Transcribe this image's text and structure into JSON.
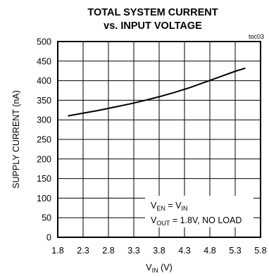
{
  "chart_data": {
    "type": "line",
    "title_line1": "TOTAL SYSTEM CURRENT",
    "title_line2": "vs. INPUT VOLTAGE",
    "figure_code": "toc03",
    "xlabel": {
      "main": "V",
      "sub": "IN",
      "unit": " (V)"
    },
    "ylabel": "SUPPLY CURRENT (nA)",
    "xlim": [
      1.8,
      5.8
    ],
    "ylim": [
      0,
      500
    ],
    "x_ticks": [
      "1.8",
      "2.3",
      "2.8",
      "3.3",
      "3.8",
      "4.3",
      "4.8",
      "5.3",
      "5.8"
    ],
    "y_ticks": [
      "0",
      "50",
      "100",
      "150",
      "200",
      "250",
      "300",
      "350",
      "400",
      "450",
      "500"
    ],
    "grid": true,
    "annotation": {
      "line1": {
        "a": "V",
        "a_sub": "EN",
        "mid": " = V",
        "b_sub": "IN"
      },
      "line2": {
        "a": "V",
        "a_sub": "OUT",
        "rest": " = 1.8V, NO LOAD"
      }
    },
    "series": [
      {
        "x": [
          2.0,
          2.3,
          2.6,
          2.9,
          3.2,
          3.5,
          3.8,
          4.1,
          4.4,
          4.7,
          5.0,
          5.3,
          5.5
        ],
        "values": [
          310,
          317,
          324,
          332,
          340,
          349,
          359,
          370,
          382,
          396,
          410,
          424,
          432
        ]
      }
    ]
  }
}
